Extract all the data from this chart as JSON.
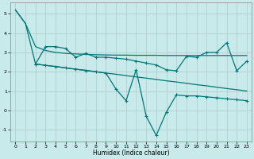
{
  "xlabel": "Humidex (Indice chaleur)",
  "background_color": "#c8eaea",
  "grid_color": "#b0c8c8",
  "line_color": "#007878",
  "xlim": [
    -0.5,
    23.5
  ],
  "ylim": [
    -1.6,
    5.6
  ],
  "yticks": [
    -1,
    0,
    1,
    2,
    3,
    4,
    5
  ],
  "xticks": [
    0,
    1,
    2,
    3,
    4,
    5,
    6,
    7,
    8,
    9,
    10,
    11,
    12,
    13,
    14,
    15,
    16,
    17,
    18,
    19,
    20,
    21,
    22,
    23
  ],
  "line_top_x": [
    0,
    1,
    2,
    3,
    4,
    5,
    6,
    7,
    8,
    9,
    10,
    11,
    12,
    13,
    14,
    15,
    16,
    17,
    18,
    19,
    20,
    21,
    22,
    23
  ],
  "line_top_y": [
    5.2,
    4.5,
    3.3,
    3.1,
    3.0,
    2.95,
    2.92,
    2.9,
    2.88,
    2.87,
    2.86,
    2.86,
    2.85,
    2.85,
    2.85,
    2.84,
    2.84,
    2.84,
    2.84,
    2.84,
    2.84,
    2.84,
    2.84,
    2.84
  ],
  "line_mid_x": [
    2,
    3,
    4,
    5,
    6,
    7,
    8,
    9,
    10,
    11,
    12,
    13,
    14,
    15,
    16,
    17,
    18,
    19,
    20,
    21,
    22,
    23
  ],
  "line_mid_y": [
    2.4,
    3.3,
    3.3,
    3.2,
    2.75,
    2.95,
    2.75,
    2.75,
    2.7,
    2.65,
    2.55,
    2.45,
    2.35,
    2.1,
    2.05,
    2.8,
    2.75,
    3.0,
    3.0,
    3.5,
    2.05,
    2.55
  ],
  "line_diag_x": [
    0,
    1,
    2,
    3,
    4,
    5,
    6,
    7,
    8,
    9,
    10,
    11,
    12,
    13,
    14,
    15,
    16,
    17,
    18,
    19,
    20,
    21,
    22,
    23
  ],
  "line_diag_y": [
    5.2,
    4.5,
    2.4,
    2.33,
    2.27,
    2.2,
    2.13,
    2.07,
    2.0,
    1.93,
    1.87,
    1.8,
    1.73,
    1.67,
    1.6,
    1.53,
    1.47,
    1.4,
    1.33,
    1.27,
    1.2,
    1.13,
    1.07,
    1.0
  ],
  "line_vol_x": [
    2,
    3,
    4,
    5,
    6,
    7,
    8,
    9,
    10,
    11,
    12,
    13,
    14,
    15,
    16,
    17,
    18,
    19,
    20,
    21,
    22,
    23
  ],
  "line_vol_y": [
    2.4,
    2.33,
    2.27,
    2.2,
    2.13,
    2.07,
    2.0,
    1.93,
    1.1,
    0.5,
    2.1,
    -0.3,
    -1.3,
    -0.1,
    0.8,
    0.75,
    0.75,
    0.7,
    0.65,
    0.6,
    0.55,
    0.5
  ]
}
